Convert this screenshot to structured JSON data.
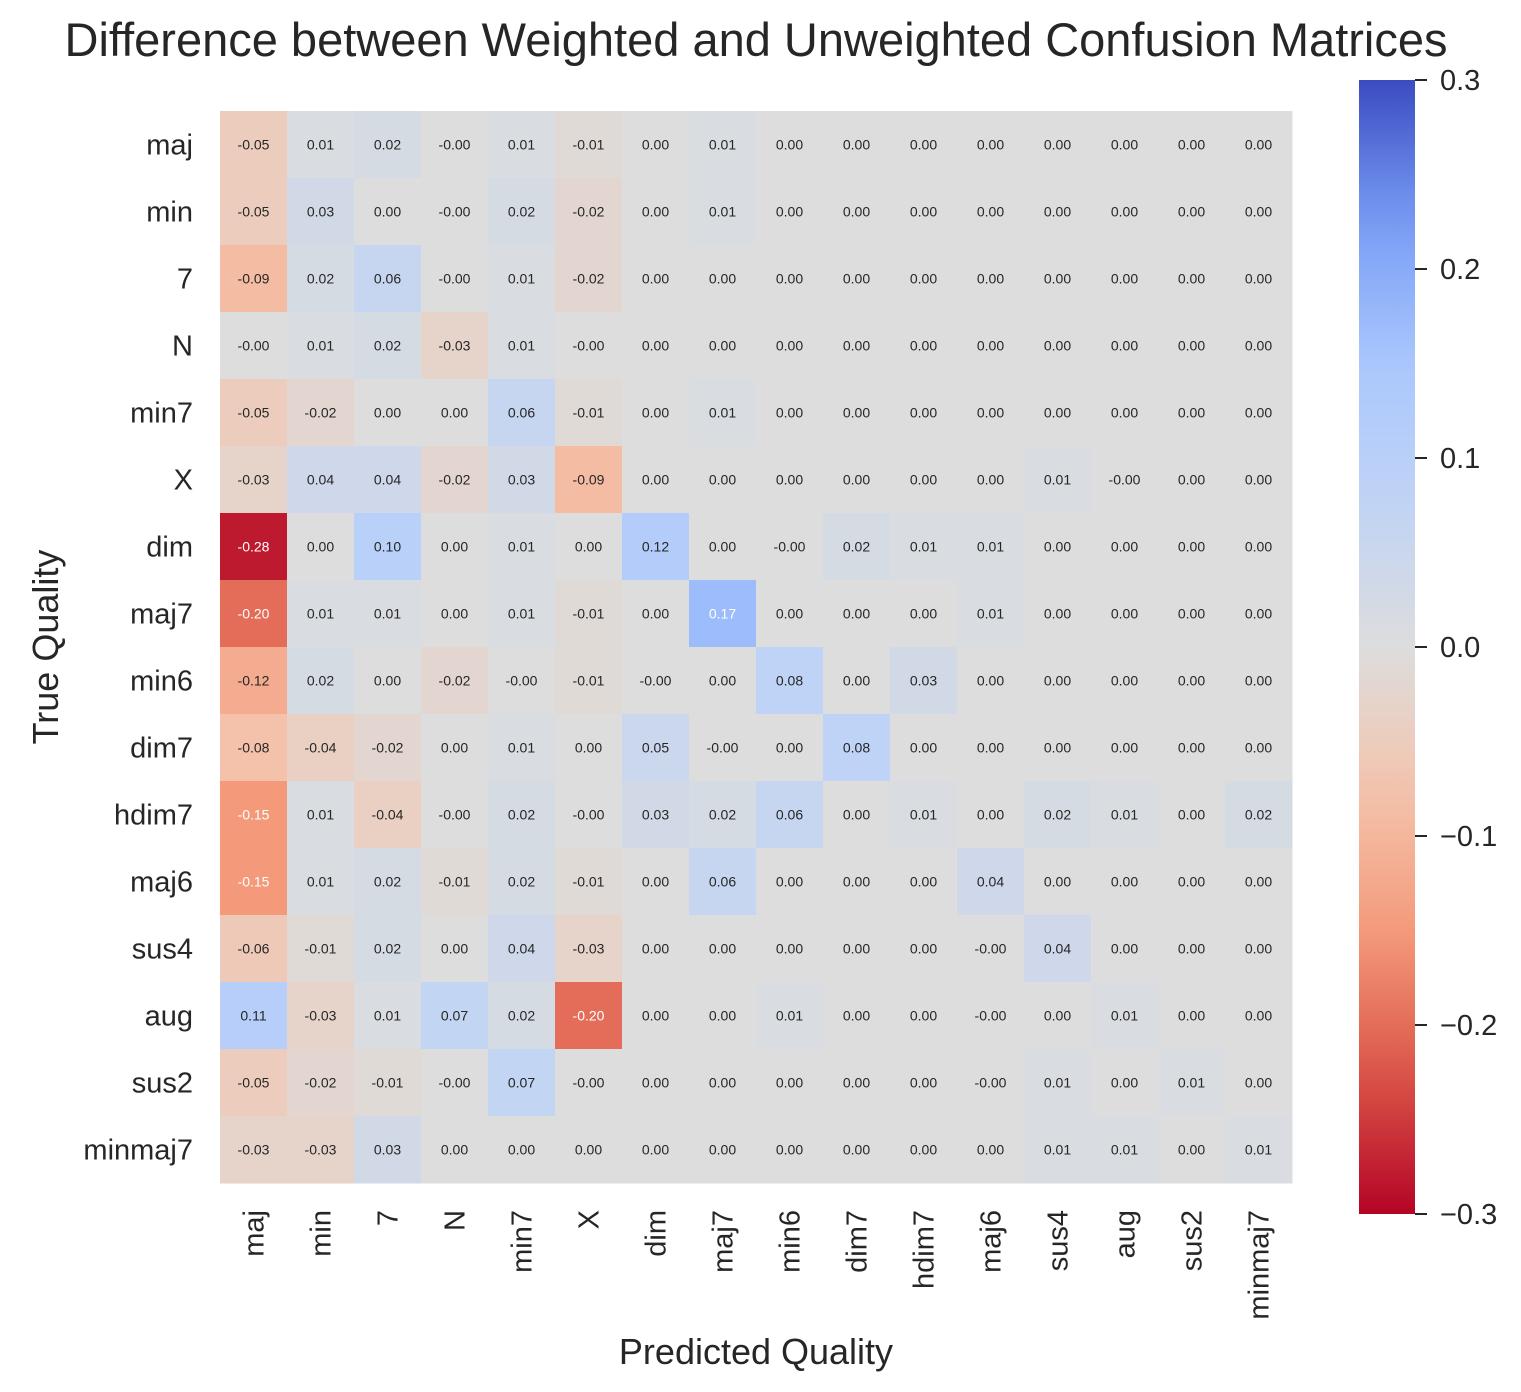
{
  "chart_data": {
    "type": "heatmap",
    "title": "Difference between Weighted and Unweighted Confusion Matrices",
    "xlabel": "Predicted Quality",
    "ylabel": "True Quality",
    "x_categories": [
      "maj",
      "min",
      "7",
      "N",
      "min7",
      "X",
      "dim",
      "maj7",
      "min6",
      "dim7",
      "hdim7",
      "maj6",
      "sus4",
      "aug",
      "sus2",
      "minmaj7"
    ],
    "y_categories": [
      "maj",
      "min",
      "7",
      "N",
      "min7",
      "X",
      "dim",
      "maj7",
      "min6",
      "dim7",
      "hdim7",
      "maj6",
      "sus4",
      "aug",
      "sus2",
      "minmaj7"
    ],
    "values": [
      [
        -0.05,
        0.01,
        0.02,
        -0.0,
        0.01,
        -0.01,
        0.0,
        0.01,
        0.0,
        0.0,
        0.0,
        0.0,
        0.0,
        0.0,
        0.0,
        0.0
      ],
      [
        -0.05,
        0.03,
        0.0,
        -0.0,
        0.02,
        -0.02,
        0.0,
        0.01,
        0.0,
        0.0,
        0.0,
        0.0,
        0.0,
        0.0,
        0.0,
        0.0
      ],
      [
        -0.09,
        0.02,
        0.06,
        -0.0,
        0.01,
        -0.02,
        0.0,
        0.0,
        0.0,
        0.0,
        0.0,
        0.0,
        0.0,
        0.0,
        0.0,
        0.0
      ],
      [
        -0.0,
        0.01,
        0.02,
        -0.03,
        0.01,
        -0.0,
        0.0,
        0.0,
        0.0,
        0.0,
        0.0,
        0.0,
        0.0,
        0.0,
        0.0,
        0.0
      ],
      [
        -0.05,
        -0.02,
        0.0,
        0.0,
        0.06,
        -0.01,
        0.0,
        0.01,
        0.0,
        0.0,
        0.0,
        0.0,
        0.0,
        0.0,
        0.0,
        0.0
      ],
      [
        -0.03,
        0.04,
        0.04,
        -0.02,
        0.03,
        -0.09,
        0.0,
        0.0,
        0.0,
        0.0,
        0.0,
        0.0,
        0.01,
        -0.0,
        0.0,
        0.0
      ],
      [
        -0.28,
        0.0,
        0.1,
        0.0,
        0.01,
        0.0,
        0.12,
        0.0,
        -0.0,
        0.02,
        0.01,
        0.01,
        0.0,
        0.0,
        0.0,
        0.0
      ],
      [
        -0.2,
        0.01,
        0.01,
        0.0,
        0.01,
        -0.01,
        0.0,
        0.17,
        0.0,
        0.0,
        0.0,
        0.01,
        0.0,
        0.0,
        0.0,
        0.0
      ],
      [
        -0.12,
        0.02,
        0.0,
        -0.02,
        -0.0,
        -0.01,
        -0.0,
        0.0,
        0.08,
        0.0,
        0.03,
        0.0,
        0.0,
        0.0,
        0.0,
        0.0
      ],
      [
        -0.08,
        -0.04,
        -0.02,
        0.0,
        0.01,
        0.0,
        0.05,
        -0.0,
        0.0,
        0.08,
        0.0,
        0.0,
        0.0,
        0.0,
        0.0,
        0.0
      ],
      [
        -0.15,
        0.01,
        -0.04,
        -0.0,
        0.02,
        -0.0,
        0.03,
        0.02,
        0.06,
        0.0,
        0.01,
        0.0,
        0.02,
        0.01,
        0.0,
        0.02
      ],
      [
        -0.15,
        0.01,
        0.02,
        -0.01,
        0.02,
        -0.01,
        0.0,
        0.06,
        0.0,
        0.0,
        0.0,
        0.04,
        0.0,
        0.0,
        0.0,
        0.0
      ],
      [
        -0.06,
        -0.01,
        0.02,
        0.0,
        0.04,
        -0.03,
        0.0,
        0.0,
        0.0,
        0.0,
        0.0,
        -0.0,
        0.04,
        0.0,
        0.0,
        0.0
      ],
      [
        0.11,
        -0.03,
        0.01,
        0.07,
        0.02,
        -0.2,
        0.0,
        0.0,
        0.01,
        0.0,
        0.0,
        -0.0,
        0.0,
        0.01,
        0.0,
        0.0
      ],
      [
        -0.05,
        -0.02,
        -0.01,
        -0.0,
        0.07,
        -0.0,
        0.0,
        0.0,
        0.0,
        0.0,
        0.0,
        -0.0,
        0.01,
        0.0,
        0.01,
        0.0
      ],
      [
        -0.03,
        -0.03,
        0.03,
        0.0,
        0.0,
        0.0,
        0.0,
        0.0,
        0.0,
        0.0,
        0.0,
        0.0,
        0.01,
        0.01,
        0.0,
        0.01
      ]
    ],
    "colormap": "coolwarm_r",
    "color_range": [
      -0.3,
      0.3
    ],
    "colorbar_ticks": [
      0.3,
      0.2,
      0.1,
      0.0,
      -0.1,
      -0.2,
      -0.3
    ],
    "colorbar_tick_labels": [
      "0.3",
      "0.2",
      "0.1",
      "0.0",
      "−0.1",
      "−0.2",
      "−0.3"
    ],
    "annotation_format": "0.00"
  }
}
